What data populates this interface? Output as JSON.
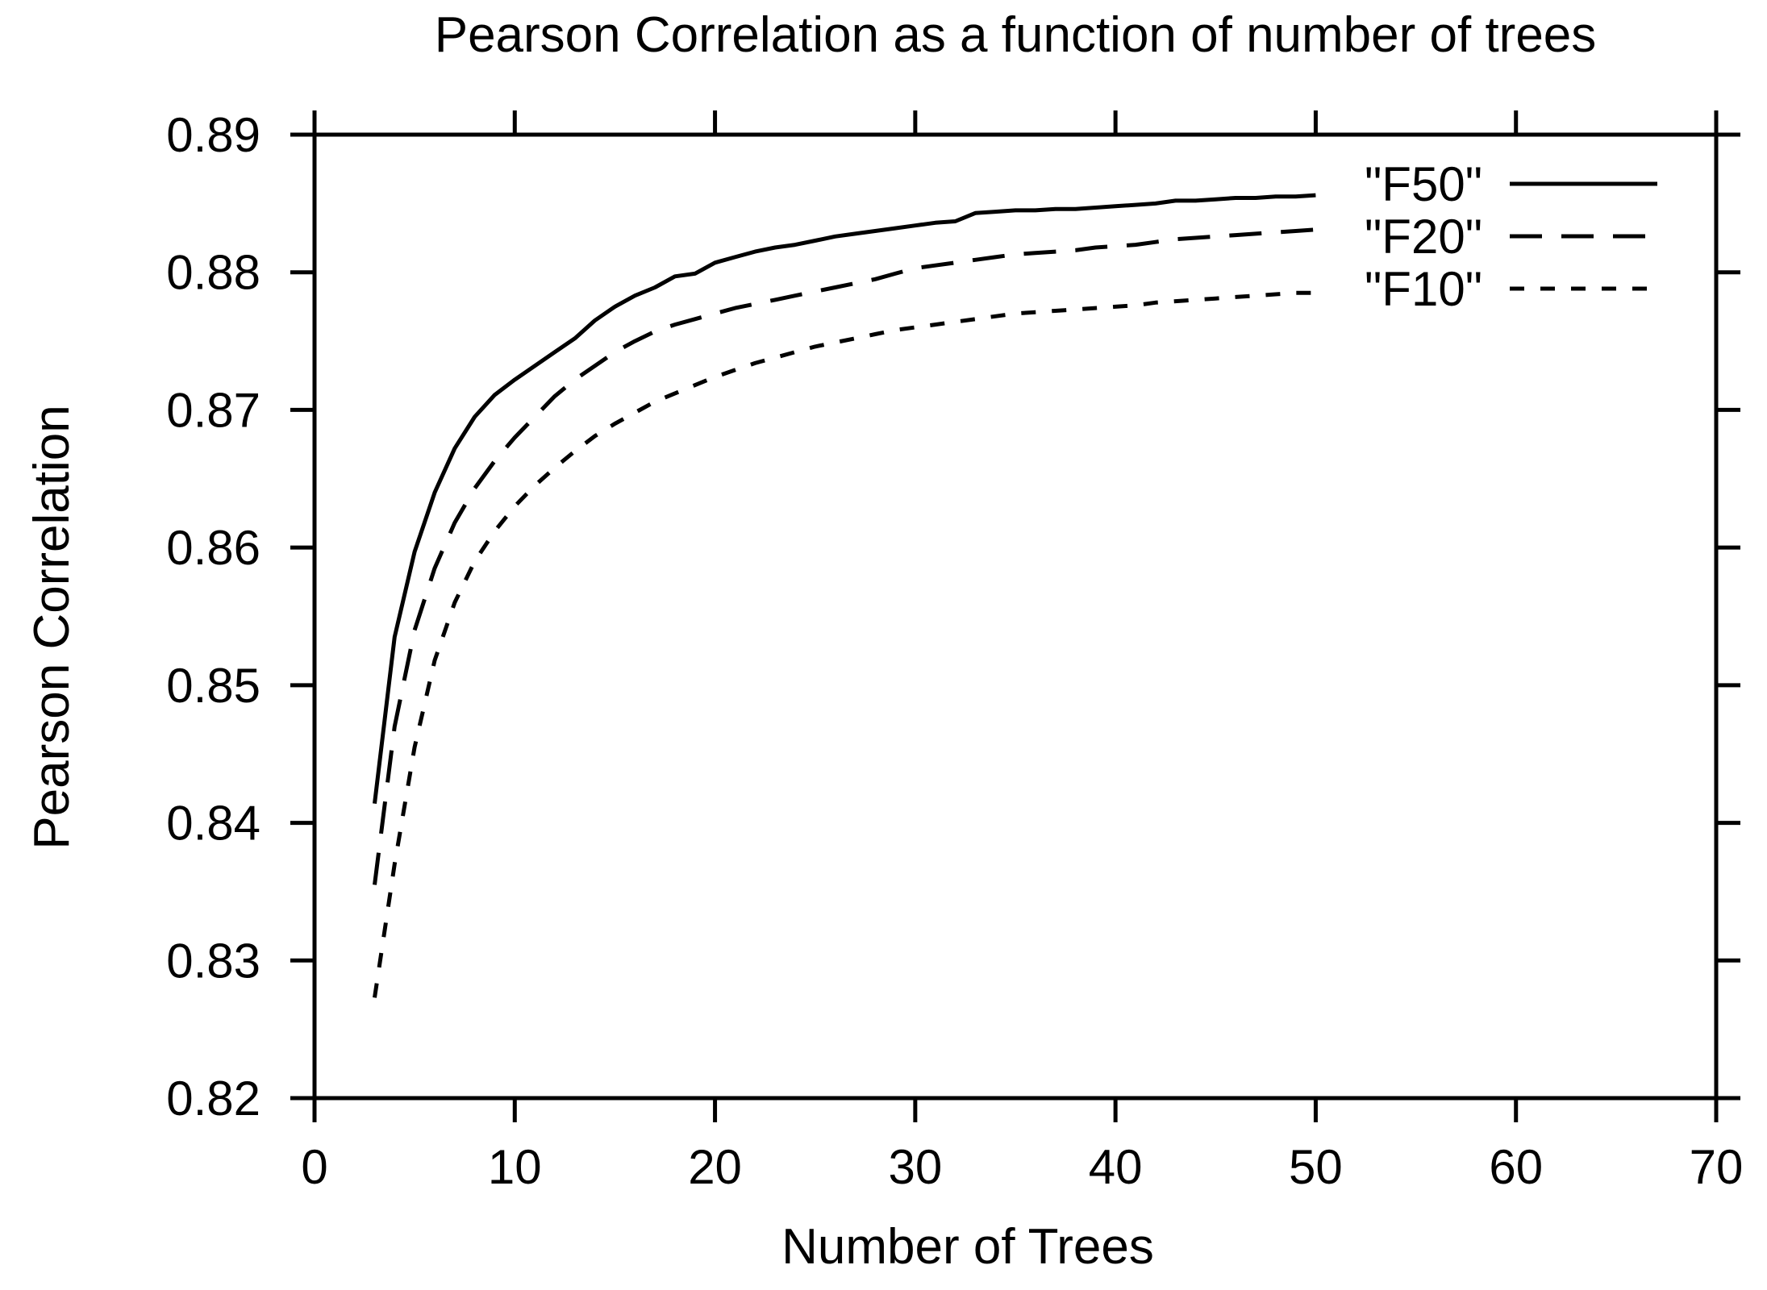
{
  "title": "Pearson Correlation as a function of number of trees",
  "xlabel": "Number of Trees",
  "ylabel": "Pearson Correlation",
  "colors": {
    "foreground": "#000000",
    "background": "#ffffff"
  },
  "chart_data": {
    "type": "line",
    "title": "Pearson Correlation as a function of number of trees",
    "xlabel": "Number of Trees",
    "ylabel": "Pearson Correlation",
    "xlim": [
      0,
      70
    ],
    "ylim": [
      0.82,
      0.89
    ],
    "grid": false,
    "tick_direction": "out",
    "legend_position": "top-right-inside",
    "x_ticks": [
      "0",
      "10",
      "20",
      "30",
      "40",
      "50",
      "60",
      "70"
    ],
    "x_tick_values": [
      0,
      10,
      20,
      30,
      40,
      50,
      60,
      70
    ],
    "y_ticks": [
      "0.82",
      "0.83",
      "0.84",
      "0.85",
      "0.86",
      "0.87",
      "0.88",
      "0.89"
    ],
    "y_tick_values": [
      0.82,
      0.83,
      0.84,
      0.85,
      0.86,
      0.87,
      0.88,
      0.89
    ],
    "x": [
      3,
      4,
      5,
      6,
      7,
      8,
      9,
      10,
      11,
      12,
      13,
      14,
      15,
      16,
      17,
      18,
      19,
      20,
      21,
      22,
      23,
      24,
      25,
      26,
      27,
      28,
      29,
      30,
      31,
      32,
      33,
      34,
      35,
      36,
      37,
      38,
      39,
      40,
      41,
      42,
      43,
      44,
      45,
      46,
      47,
      48,
      49,
      50
    ],
    "series": [
      {
        "name": "\"F50\"",
        "line_style": "solid",
        "values": [
          0.8414,
          0.8535,
          0.8597,
          0.864,
          0.8672,
          0.8695,
          0.8711,
          0.8722,
          0.8732,
          0.8742,
          0.8752,
          0.8765,
          0.8775,
          0.8783,
          0.8789,
          0.8797,
          0.8799,
          0.8807,
          0.8811,
          0.8815,
          0.8818,
          0.882,
          0.8823,
          0.8826,
          0.8828,
          0.883,
          0.8832,
          0.8834,
          0.8836,
          0.8837,
          0.8843,
          0.8844,
          0.8845,
          0.8845,
          0.8846,
          0.8846,
          0.8847,
          0.8848,
          0.8849,
          0.885,
          0.8852,
          0.8852,
          0.8853,
          0.8854,
          0.8854,
          0.8855,
          0.8855,
          0.8856
        ]
      },
      {
        "name": "\"F20\"",
        "line_style": "dashed",
        "values": [
          0.8355,
          0.847,
          0.854,
          0.8585,
          0.8618,
          0.8643,
          0.8663,
          0.868,
          0.8695,
          0.871,
          0.8722,
          0.8732,
          0.8742,
          0.875,
          0.8757,
          0.8762,
          0.8766,
          0.877,
          0.8774,
          0.8777,
          0.878,
          0.8783,
          0.8786,
          0.8789,
          0.8792,
          0.8795,
          0.8799,
          0.8803,
          0.8805,
          0.8807,
          0.8809,
          0.8811,
          0.8813,
          0.8814,
          0.8815,
          0.8816,
          0.8818,
          0.8819,
          0.882,
          0.8822,
          0.8824,
          0.8825,
          0.8826,
          0.8827,
          0.8828,
          0.8829,
          0.883,
          0.8831
        ]
      },
      {
        "name": "\"F10\"",
        "line_style": "short-dashed",
        "values": [
          0.8273,
          0.837,
          0.8455,
          0.8518,
          0.856,
          0.859,
          0.8612,
          0.863,
          0.8645,
          0.8658,
          0.867,
          0.8681,
          0.869,
          0.8698,
          0.8706,
          0.8712,
          0.8718,
          0.8724,
          0.8729,
          0.8734,
          0.8738,
          0.8742,
          0.8746,
          0.8749,
          0.8752,
          0.8755,
          0.8758,
          0.876,
          0.8762,
          0.8764,
          0.8766,
          0.8768,
          0.877,
          0.8771,
          0.8772,
          0.8773,
          0.8774,
          0.8775,
          0.8776,
          0.8778,
          0.8779,
          0.878,
          0.8781,
          0.8782,
          0.8783,
          0.8784,
          0.8785,
          0.8785
        ]
      }
    ]
  }
}
